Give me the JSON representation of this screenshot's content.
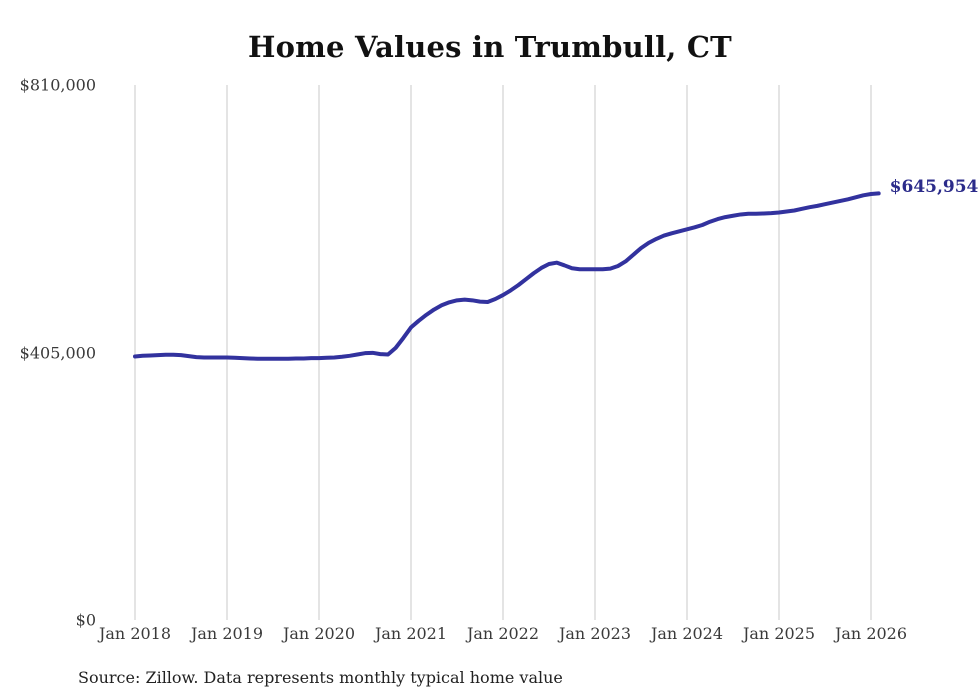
{
  "header": {
    "title": "Home Values in Trumbull, CT"
  },
  "footer": {
    "source_note": "Source: Zillow. Data represents monthly typical home value"
  },
  "colors": {
    "line": "#32329e",
    "end_label": "#2b2b8a",
    "gridline": "#c9c9c9",
    "axis_text": "#3a3a3a",
    "title_text": "#111111"
  },
  "chart_data": {
    "type": "line",
    "title": "Home Values in Trumbull, CT",
    "xlabel": "",
    "ylabel": "",
    "ylim": [
      0,
      810000
    ],
    "grid": "vertical-only",
    "legend": "none",
    "y_ticks": [
      {
        "label": "$810,000",
        "value": 810000
      },
      {
        "label": "$405,000",
        "value": 405000
      },
      {
        "label": "$0",
        "value": 0
      }
    ],
    "x_tick_labels": [
      "Jan 2018",
      "Jan 2019",
      "Jan 2020",
      "Jan 2021",
      "Jan 2022",
      "Jan 2023",
      "Jan 2024",
      "Jan 2025",
      "Jan 2026"
    ],
    "start_month": "Jan 2018",
    "end_month": "Feb 2026",
    "end_label": "$645,954",
    "end_value": 645954,
    "series": [
      {
        "name": "Monthly typical home value",
        "values": [
          399000,
          400000,
          400500,
          401000,
          401500,
          401500,
          401000,
          399500,
          398000,
          397500,
          397500,
          397500,
          397500,
          397000,
          396500,
          396000,
          395500,
          395500,
          395500,
          395500,
          395500,
          396000,
          396000,
          396500,
          396500,
          397000,
          397500,
          398500,
          400000,
          402000,
          404000,
          404500,
          402500,
          402000,
          412000,
          427000,
          443000,
          453000,
          462000,
          470000,
          476500,
          481000,
          484000,
          485000,
          484000,
          482000,
          481500,
          486000,
          492000,
          499000,
          507000,
          516000,
          525000,
          533000,
          539000,
          541000,
          537000,
          532500,
          531000,
          531000,
          531000,
          531000,
          532000,
          536000,
          543000,
          553000,
          563000,
          571000,
          577000,
          582000,
          585500,
          588500,
          591500,
          594500,
          598000,
          603000,
          607000,
          610000,
          612000,
          614000,
          615000,
          615000,
          615500,
          616000,
          617000,
          618500,
          620000,
          622500,
          625000,
          627000,
          629500,
          632000,
          634500,
          637000,
          640000,
          643000,
          645000,
          645954
        ]
      }
    ]
  }
}
